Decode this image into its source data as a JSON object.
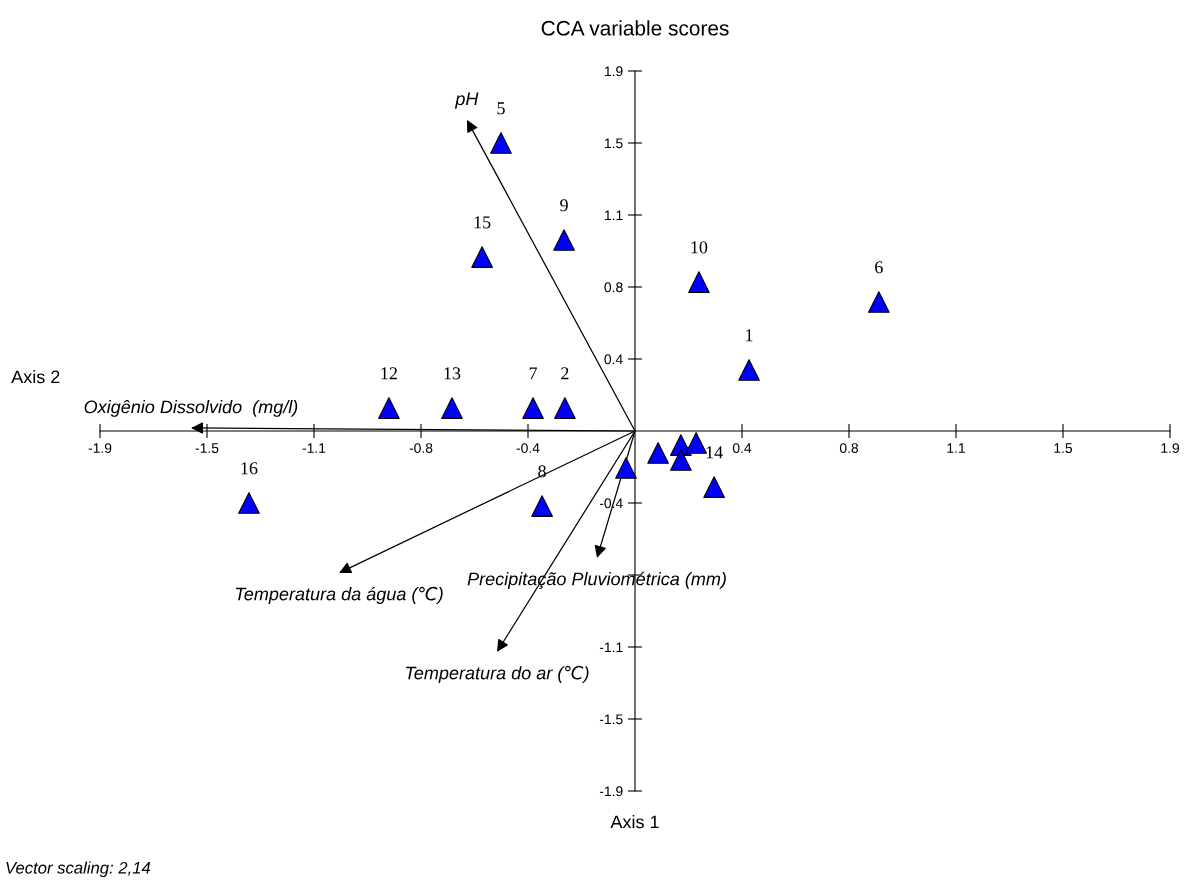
{
  "chart_data": {
    "type": "scatter",
    "title": "CCA variable scores",
    "xlabel": "Axis 1",
    "ylabel": "Axis 2",
    "xlim": [
      -1.9,
      1.9
    ],
    "ylim": [
      -1.9,
      1.9
    ],
    "xticks": [
      {
        "value": -1.9,
        "label": "-1.9"
      },
      {
        "value": -1.52,
        "label": "-1.5"
      },
      {
        "value": -1.14,
        "label": "-1.1"
      },
      {
        "value": -0.76,
        "label": "-0.8"
      },
      {
        "value": -0.38,
        "label": "-0.4"
      },
      {
        "value": 0.38,
        "label": "0.4"
      },
      {
        "value": 0.76,
        "label": "0.8"
      },
      {
        "value": 1.14,
        "label": "1.1"
      },
      {
        "value": 1.52,
        "label": "1.5"
      },
      {
        "value": 1.9,
        "label": "1.9"
      }
    ],
    "yticks": [
      {
        "value": -1.9,
        "label": "-1.9"
      },
      {
        "value": -1.52,
        "label": "-1.5"
      },
      {
        "value": -1.14,
        "label": "-1.1"
      },
      {
        "value": -0.76,
        "label": null
      },
      {
        "value": -0.38,
        "label": "-0.4"
      },
      {
        "value": 0.38,
        "label": "0.4"
      },
      {
        "value": 0.76,
        "label": "0.8"
      },
      {
        "value": 1.14,
        "label": "1.1"
      },
      {
        "value": 1.52,
        "label": "1.5"
      },
      {
        "value": 1.9,
        "label": "1.9"
      }
    ],
    "grid": false,
    "legend": false,
    "series": [
      {
        "marker": "triangle",
        "color": "#0000ff",
        "x": [
          -0.476,
          -0.252,
          -0.543,
          0.227,
          0.866,
          0.405,
          -0.874,
          -0.65,
          -0.362,
          -0.249,
          -1.371,
          -0.33,
          -0.032,
          0.082,
          0.163,
          0.217,
          0.163,
          0.281
        ],
        "values": [
          1.52,
          1.008,
          0.918,
          0.786,
          0.681,
          0.322,
          0.121,
          0.121,
          0.121,
          0.121,
          -0.38,
          -0.396,
          -0.195,
          -0.116,
          -0.074,
          -0.063,
          -0.153,
          -0.296
        ]
      },
      {
        "type": "line",
        "marker": "none",
        "line_style": "solid",
        "color": "#000000",
        "x": [
          0,
          -0.597
        ],
        "values": [
          0,
          1.642
        ]
      },
      {
        "type": "line",
        "marker": "none",
        "line_style": "solid",
        "color": "#000000",
        "x": [
          0,
          -1.577
        ],
        "values": [
          0,
          0.016
        ]
      },
      {
        "type": "line",
        "marker": "none",
        "line_style": "solid",
        "color": "#000000",
        "x": [
          0,
          -1.051
        ],
        "values": [
          0,
          -0.749
        ]
      },
      {
        "type": "line",
        "marker": "none",
        "line_style": "solid",
        "color": "#000000",
        "x": [
          0,
          -0.49
        ],
        "values": [
          0,
          -1.166
        ]
      },
      {
        "type": "line",
        "marker": "none",
        "line_style": "solid",
        "color": "#000000",
        "x": [
          0,
          -0.135
        ],
        "values": [
          0,
          -0.67
        ]
      }
    ],
    "annotations": [
      {
        "text": "5",
        "x": -0.476,
        "y": 1.52
      },
      {
        "text": "9",
        "x": -0.252,
        "y": 1.008
      },
      {
        "text": "15",
        "x": -0.543,
        "y": 0.918
      },
      {
        "text": "10",
        "x": 0.227,
        "y": 0.786
      },
      {
        "text": "6",
        "x": 0.866,
        "y": 0.681
      },
      {
        "text": "1",
        "x": 0.405,
        "y": 0.322
      },
      {
        "text": "12",
        "x": -0.874,
        "y": 0.121
      },
      {
        "text": "13",
        "x": -0.65,
        "y": 0.121
      },
      {
        "text": "7",
        "x": -0.362,
        "y": 0.121
      },
      {
        "text": "2",
        "x": -0.249,
        "y": 0.121
      },
      {
        "text": "16",
        "x": -1.371,
        "y": -0.38
      },
      {
        "text": "8",
        "x": -0.33,
        "y": -0.396
      },
      {
        "text": "14",
        "x": 0.281,
        "y": -0.296
      },
      {
        "text": "pH",
        "x": -0.597,
        "y": 1.642
      },
      {
        "text": "Oxigênio Dissolvido  (mg/l)",
        "x": -1.577,
        "y": 0.016
      },
      {
        "text": "Temperatura da água (℃)",
        "x": -1.051,
        "y": -0.749
      },
      {
        "text": "Temperatura do ar (℃)",
        "x": -0.49,
        "y": -1.166
      },
      {
        "text": "Precipitação Pluviométrica (mm)",
        "x": -0.135,
        "y": -0.67
      },
      "Vector scaling: 2,14"
    ]
  }
}
